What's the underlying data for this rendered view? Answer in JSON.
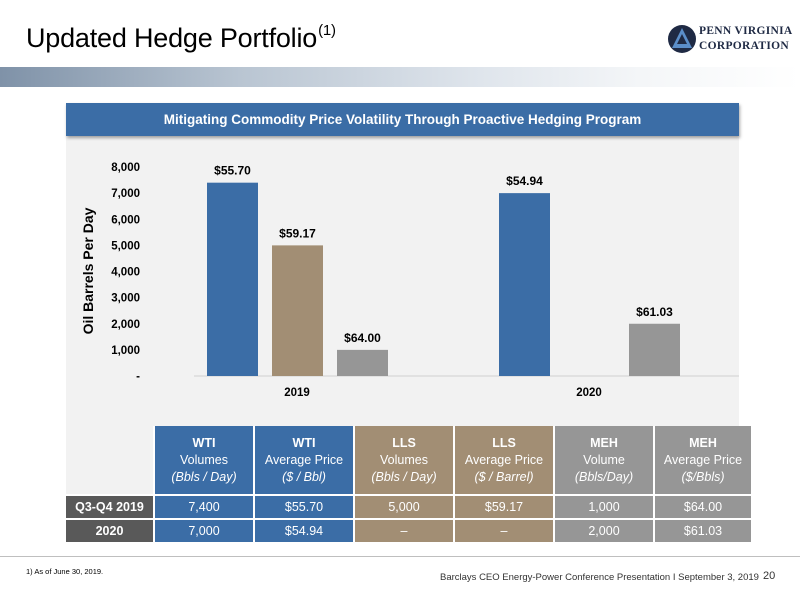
{
  "header": {
    "title": "Updated Hedge Portfolio",
    "title_sup": "(1)",
    "logo_line1": "PENN VIRGINIA",
    "logo_line2": "CORPORATION"
  },
  "banner": "Mitigating Commodity Price Volatility Through Proactive Hedging Program",
  "colors": {
    "wti": "#3b6da6",
    "lls": "#a28e74",
    "meh": "#969696",
    "label_dark": "#595959"
  },
  "chart_data": {
    "type": "bar",
    "ylabel": "Oil Barrels Per Day",
    "ylim": [
      0,
      8000
    ],
    "yticks": [
      "-",
      "1,000",
      "2,000",
      "3,000",
      "4,000",
      "5,000",
      "6,000",
      "7,000",
      "8,000"
    ],
    "categories": [
      "2019",
      "2020"
    ],
    "series": [
      {
        "name": "WTI",
        "color": "#3b6da6",
        "values": [
          7400,
          7000
        ],
        "labels": [
          "$55.70",
          "$54.94"
        ]
      },
      {
        "name": "LLS",
        "color": "#a28e74",
        "values": [
          5000,
          null
        ],
        "labels": [
          "$59.17",
          ""
        ]
      },
      {
        "name": "MEH",
        "color": "#969696",
        "values": [
          1000,
          2000
        ],
        "labels": [
          "$64.00",
          "$61.03"
        ]
      }
    ],
    "grid": false,
    "legend": "none"
  },
  "table": {
    "headers": [
      {
        "l1": "WTI",
        "l2": "Volumes",
        "l3": "(Bbls / Day)",
        "cls": "c-wti"
      },
      {
        "l1": "WTI",
        "l2": "Average Price",
        "l3": "($ / Bbl)",
        "cls": "c-wti"
      },
      {
        "l1": "LLS",
        "l2": "Volumes",
        "l3": "(Bbls / Day)",
        "cls": "c-lls"
      },
      {
        "l1": "LLS",
        "l2": "Average Price",
        "l3": "($ / Barrel)",
        "cls": "c-lls"
      },
      {
        "l1": "MEH",
        "l2": "Volume",
        "l3": "(Bbls/Day)",
        "cls": "c-meh"
      },
      {
        "l1": "MEH",
        "l2": "Average Price",
        "l3": "($/Bbls)",
        "cls": "c-meh"
      }
    ],
    "rows": [
      {
        "label": "Q3-Q4 2019",
        "cells": [
          "7,400",
          "$55.70",
          "5,000",
          "$59.17",
          "1,000",
          "$64.00"
        ]
      },
      {
        "label": "2020",
        "cells": [
          "7,000",
          "$54.94",
          "–",
          "–",
          "2,000",
          "$61.03"
        ]
      }
    ]
  },
  "footnote": "1)  As of June 30, 2019.",
  "footer": "Barclays CEO Energy-Power Conference Presentation I September 3, 2019",
  "page_number": "20"
}
